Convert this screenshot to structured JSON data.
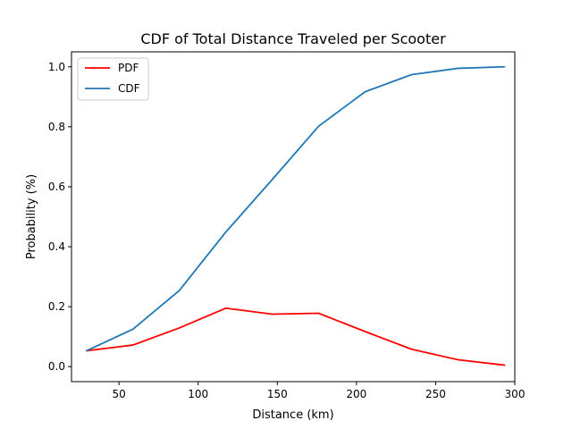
{
  "chart_data": {
    "type": "line",
    "title": "CDF of Total Distance Traveled per Scooter",
    "xlabel": "Distance (km)",
    "ylabel": "Probability (%)",
    "xlim": [
      20,
      300
    ],
    "ylim": [
      -0.05,
      1.05
    ],
    "xticks": [
      50,
      100,
      150,
      200,
      250,
      300
    ],
    "yticks": [
      0.0,
      0.2,
      0.4,
      0.6,
      0.8,
      1.0
    ],
    "xtick_labels": [
      "50",
      "100",
      "150",
      "200",
      "250",
      "300"
    ],
    "ytick_labels": [
      "0.0",
      "0.2",
      "0.4",
      "0.6",
      "0.8",
      "1.0"
    ],
    "grid": false,
    "legend_position": "top-left",
    "x": [
      29.5,
      58.8,
      88.1,
      117.5,
      146.8,
      176.1,
      205.5,
      234.8,
      264.1,
      293.5
    ],
    "series": [
      {
        "name": "PDF",
        "color": "#ff0000",
        "values": [
          0.053,
          0.072,
          0.129,
          0.195,
          0.175,
          0.178,
          0.117,
          0.058,
          0.023,
          0.005
        ]
      },
      {
        "name": "CDF",
        "color": "#1f77b4",
        "values": [
          0.053,
          0.125,
          0.254,
          0.449,
          0.624,
          0.802,
          0.917,
          0.974,
          0.995,
          1.0
        ]
      }
    ]
  }
}
